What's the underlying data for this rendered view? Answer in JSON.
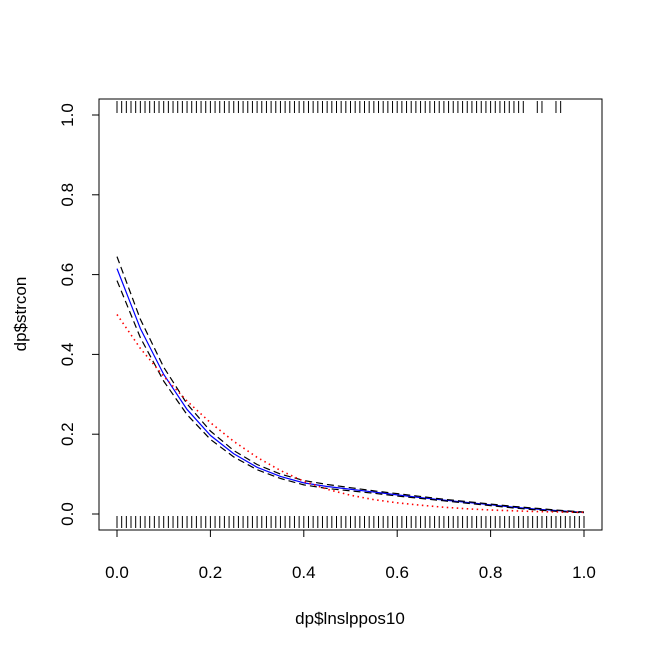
{
  "chart_data": {
    "type": "line",
    "xlabel": "dp$lnslppos10",
    "ylabel": "dp$strcon",
    "xlim": [
      0.0,
      1.0
    ],
    "ylim": [
      0.0,
      1.0
    ],
    "x_ticks": [
      "0.0",
      "0.2",
      "0.4",
      "0.6",
      "0.8",
      "1.0"
    ],
    "y_ticks": [
      "0.0",
      "0.2",
      "0.4",
      "0.6",
      "0.8",
      "1.0"
    ],
    "grid": false,
    "legend": "none",
    "series": [
      {
        "style": "solid",
        "color": "#0000ff",
        "x": [
          0.0,
          0.05,
          0.1,
          0.15,
          0.2,
          0.25,
          0.3,
          0.35,
          0.4,
          0.45,
          0.5,
          0.55,
          0.6,
          0.65,
          0.7,
          0.75,
          0.8,
          0.85,
          0.9,
          0.95,
          1.0
        ],
        "values": [
          0.615,
          0.465,
          0.35,
          0.262,
          0.197,
          0.151,
          0.117,
          0.094,
          0.078,
          0.069,
          0.062,
          0.055,
          0.048,
          0.041,
          0.035,
          0.029,
          0.023,
          0.017,
          0.012,
          0.008,
          0.004
        ]
      },
      {
        "style": "dashed",
        "color": "#000000",
        "x": [
          0.0,
          0.05,
          0.1,
          0.15,
          0.2,
          0.25,
          0.3,
          0.35,
          0.4,
          0.45,
          0.5,
          0.55,
          0.6,
          0.65,
          0.7,
          0.75,
          0.8,
          0.85,
          0.9,
          0.95,
          1.0
        ],
        "values": [
          0.645,
          0.488,
          0.368,
          0.276,
          0.208,
          0.159,
          0.124,
          0.1,
          0.084,
          0.074,
          0.066,
          0.058,
          0.051,
          0.044,
          0.037,
          0.031,
          0.025,
          0.019,
          0.014,
          0.009,
          0.005
        ]
      },
      {
        "style": "dashed",
        "color": "#000000",
        "x": [
          0.0,
          0.05,
          0.1,
          0.15,
          0.2,
          0.25,
          0.3,
          0.35,
          0.4,
          0.45,
          0.5,
          0.55,
          0.6,
          0.65,
          0.7,
          0.75,
          0.8,
          0.85,
          0.9,
          0.95,
          1.0
        ],
        "values": [
          0.585,
          0.442,
          0.333,
          0.249,
          0.187,
          0.143,
          0.111,
          0.089,
          0.073,
          0.064,
          0.058,
          0.052,
          0.045,
          0.039,
          0.033,
          0.027,
          0.021,
          0.015,
          0.01,
          0.006,
          0.003
        ]
      },
      {
        "style": "dotted",
        "color": "#ff0000",
        "x": [
          0.0,
          0.05,
          0.1,
          0.15,
          0.2,
          0.25,
          0.3,
          0.35,
          0.4,
          0.45,
          0.5,
          0.55,
          0.6,
          0.65,
          0.7,
          0.75,
          0.8,
          0.85,
          0.9,
          0.95,
          1.0
        ],
        "values": [
          0.5,
          0.415,
          0.345,
          0.283,
          0.229,
          0.182,
          0.142,
          0.109,
          0.082,
          0.062,
          0.047,
          0.036,
          0.028,
          0.022,
          0.017,
          0.013,
          0.01,
          0.008,
          0.006,
          0.005,
          0.004
        ]
      }
    ],
    "rug_bottom": [
      0.0,
      0.01,
      0.02,
      0.03,
      0.04,
      0.05,
      0.06,
      0.07,
      0.08,
      0.09,
      0.1,
      0.11,
      0.12,
      0.13,
      0.14,
      0.15,
      0.16,
      0.17,
      0.18,
      0.19,
      0.2,
      0.21,
      0.22,
      0.23,
      0.24,
      0.25,
      0.26,
      0.27,
      0.28,
      0.29,
      0.3,
      0.31,
      0.32,
      0.33,
      0.34,
      0.35,
      0.36,
      0.37,
      0.38,
      0.39,
      0.4,
      0.41,
      0.42,
      0.43,
      0.44,
      0.45,
      0.46,
      0.47,
      0.48,
      0.49,
      0.5,
      0.51,
      0.52,
      0.53,
      0.54,
      0.55,
      0.56,
      0.57,
      0.58,
      0.59,
      0.6,
      0.61,
      0.62,
      0.63,
      0.64,
      0.65,
      0.66,
      0.67,
      0.68,
      0.69,
      0.7,
      0.71,
      0.72,
      0.73,
      0.74,
      0.75,
      0.76,
      0.77,
      0.78,
      0.79,
      0.8,
      0.81,
      0.82,
      0.83,
      0.84,
      0.85,
      0.86,
      0.87,
      0.88,
      0.89,
      0.9,
      0.91,
      0.92,
      0.93,
      0.94,
      0.95,
      0.96,
      0.97,
      0.98,
      0.99,
      1.0
    ],
    "rug_top": [
      0.0,
      0.01,
      0.02,
      0.03,
      0.04,
      0.05,
      0.06,
      0.07,
      0.08,
      0.09,
      0.1,
      0.11,
      0.12,
      0.13,
      0.14,
      0.15,
      0.16,
      0.17,
      0.18,
      0.19,
      0.2,
      0.21,
      0.22,
      0.23,
      0.24,
      0.25,
      0.26,
      0.27,
      0.28,
      0.29,
      0.3,
      0.31,
      0.32,
      0.33,
      0.34,
      0.35,
      0.36,
      0.37,
      0.38,
      0.39,
      0.4,
      0.41,
      0.42,
      0.43,
      0.44,
      0.45,
      0.46,
      0.47,
      0.48,
      0.49,
      0.5,
      0.51,
      0.52,
      0.53,
      0.54,
      0.55,
      0.56,
      0.57,
      0.58,
      0.59,
      0.6,
      0.61,
      0.62,
      0.63,
      0.64,
      0.65,
      0.66,
      0.67,
      0.68,
      0.69,
      0.7,
      0.71,
      0.72,
      0.73,
      0.74,
      0.75,
      0.76,
      0.77,
      0.78,
      0.79,
      0.8,
      0.81,
      0.82,
      0.83,
      0.84,
      0.85,
      0.86,
      0.87,
      0.9,
      0.91,
      0.94,
      0.95
    ]
  }
}
